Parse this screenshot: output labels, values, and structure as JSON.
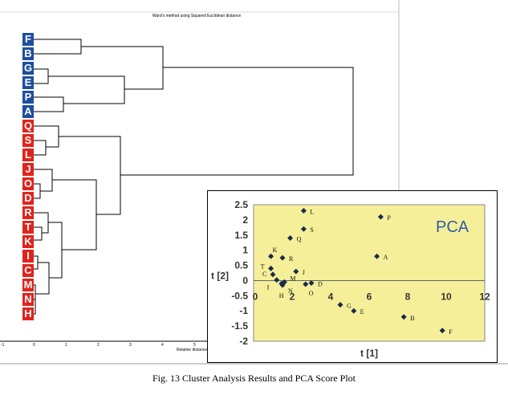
{
  "dendrogram": {
    "title": "Ward's method using Squared Euclidean distance",
    "xlabel": "Relative distance",
    "ticks": [
      "-1",
      "0",
      "1",
      "2",
      "3",
      "4",
      "5"
    ],
    "leaves": [
      {
        "label": "F",
        "color": "#1f4e9c"
      },
      {
        "label": "B",
        "color": "#1f4e9c"
      },
      {
        "label": "G",
        "color": "#1f4e9c"
      },
      {
        "label": "E",
        "color": "#1f4e9c"
      },
      {
        "label": "P",
        "color": "#1f4e9c"
      },
      {
        "label": "A",
        "color": "#1f4e9c"
      },
      {
        "label": "Q",
        "color": "#e0231d"
      },
      {
        "label": "S",
        "color": "#e0231d"
      },
      {
        "label": "L",
        "color": "#e0231d"
      },
      {
        "label": "J",
        "color": "#e0231d"
      },
      {
        "label": "O",
        "color": "#e0231d"
      },
      {
        "label": "D",
        "color": "#e0231d"
      },
      {
        "label": "R",
        "color": "#e0231d"
      },
      {
        "label": "T",
        "color": "#e0231d"
      },
      {
        "label": "K",
        "color": "#e0231d"
      },
      {
        "label": "I",
        "color": "#e0231d"
      },
      {
        "label": "C",
        "color": "#e0231d"
      },
      {
        "label": "M",
        "color": "#e0231d"
      },
      {
        "label": "N",
        "color": "#e0231d"
      },
      {
        "label": "H",
        "color": "#e0231d"
      }
    ]
  },
  "chart_data": {
    "type": "scatter",
    "title": "PCA",
    "xlabel": "t [1]",
    "ylabel": "t [2]",
    "xlim": [
      0,
      12
    ],
    "ylim": [
      -2,
      2.5
    ],
    "xticks": [
      "0",
      "2",
      "4",
      "6",
      "8",
      "10",
      "12"
    ],
    "yticks": [
      "2.5",
      "2",
      "1.5",
      "1",
      "0.5",
      "0",
      "-0.5",
      "-1",
      "-1.5",
      "-2"
    ],
    "points": [
      {
        "label": "L",
        "x": 2.6,
        "y": 2.3
      },
      {
        "label": "P",
        "x": 6.6,
        "y": 2.1
      },
      {
        "label": "S",
        "x": 2.6,
        "y": 1.7
      },
      {
        "label": "Q",
        "x": 1.9,
        "y": 1.4
      },
      {
        "label": "K",
        "x": 0.9,
        "y": 0.8
      },
      {
        "label": "R",
        "x": 1.5,
        "y": 0.75
      },
      {
        "label": "A",
        "x": 6.4,
        "y": 0.8
      },
      {
        "label": "T",
        "x": 0.9,
        "y": 0.4
      },
      {
        "label": "J",
        "x": 2.2,
        "y": 0.3
      },
      {
        "label": "C",
        "x": 1.0,
        "y": 0.2
      },
      {
        "label": "I",
        "x": 1.2,
        "y": 0.02
      },
      {
        "label": "M",
        "x": 1.6,
        "y": -0.05
      },
      {
        "label": "N",
        "x": 1.5,
        "y": -0.15
      },
      {
        "label": "H",
        "x": 1.45,
        "y": -0.1
      },
      {
        "label": "O",
        "x": 2.7,
        "y": -0.12
      },
      {
        "label": "D",
        "x": 3.0,
        "y": -0.08
      },
      {
        "label": "G",
        "x": 4.5,
        "y": -0.8
      },
      {
        "label": "E",
        "x": 5.2,
        "y": -1.0
      },
      {
        "label": "B",
        "x": 7.8,
        "y": -1.2
      },
      {
        "label": "F",
        "x": 9.8,
        "y": -1.65
      }
    ],
    "colors": {
      "plot_bg": "#f5ef9a",
      "marker": "#1a2a4a"
    }
  },
  "caption": "Fig. 13   Cluster Analysis Results and PCA Score Plot"
}
